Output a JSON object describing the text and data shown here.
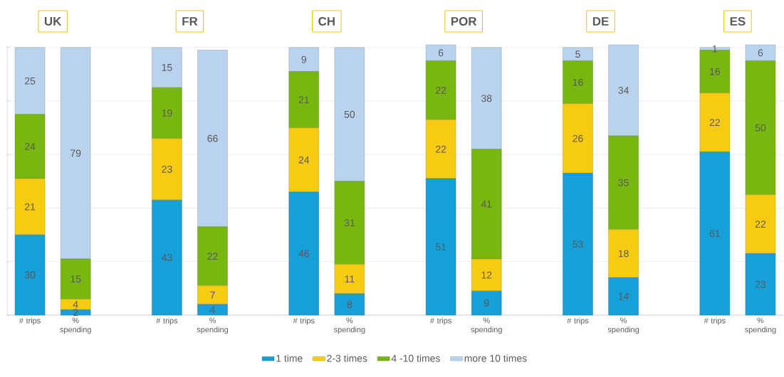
{
  "chart_data": {
    "type": "bar",
    "stacked": true,
    "categories": [
      "# trips",
      "% spending",
      null,
      "# trips",
      "% spending",
      null,
      "# trips",
      "% spending",
      null,
      "# trips",
      "% spending",
      null,
      "# trips",
      "% spending",
      null,
      "# trips",
      "% spending"
    ],
    "series": [
      {
        "name": "1 time",
        "color": "#16a0da",
        "values": [
          30,
          2,
          null,
          43,
          4,
          null,
          46,
          8,
          null,
          51,
          9,
          null,
          53,
          14,
          null,
          61,
          23
        ]
      },
      {
        "name": "2-3 times",
        "color": "#f7cb12",
        "values": [
          21,
          4,
          null,
          23,
          7,
          null,
          24,
          11,
          null,
          22,
          12,
          null,
          26,
          18,
          null,
          22,
          22
        ]
      },
      {
        "name": "4 -10 times",
        "color": "#78b70f",
        "values": [
          24,
          15,
          null,
          19,
          22,
          null,
          21,
          31,
          null,
          22,
          41,
          null,
          16,
          35,
          null,
          16,
          50
        ]
      },
      {
        "name": "more 10 times",
        "color": "#b9d3ef",
        "values": [
          25,
          79,
          null,
          15,
          66,
          null,
          9,
          50,
          null,
          6,
          38,
          null,
          5,
          34,
          null,
          1,
          6
        ]
      }
    ],
    "annotations": [
      "UK",
      "FR",
      "CH",
      "POR",
      "DE",
      "ES"
    ],
    "ylim": [
      0,
      101
    ],
    "yticks": [
      {
        "value": 0,
        "label": null
      },
      {
        "value": 20,
        "label": null
      },
      {
        "value": 40,
        "label": null
      },
      {
        "value": 60,
        "label": null
      },
      {
        "value": 80,
        "label": null
      },
      {
        "value": 100,
        "label": null
      }
    ],
    "tick_labels": "x",
    "grid": "y",
    "data_labels": true,
    "legend": "bottom"
  }
}
